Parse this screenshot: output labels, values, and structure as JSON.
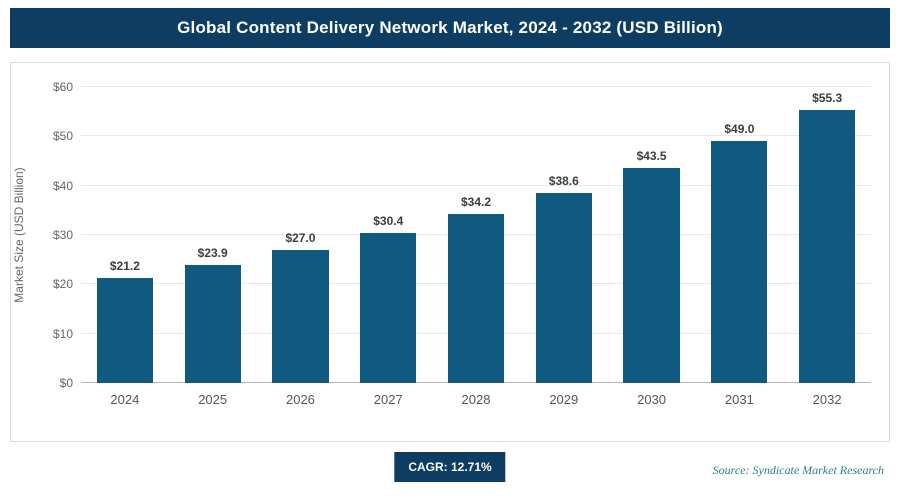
{
  "header": {
    "title": "Global Content Delivery Network Market, 2024 - 2032 (USD Billion)"
  },
  "chart_data": {
    "type": "bar",
    "title": "Global Content Delivery Network Market, 2024 - 2032 (USD Billion)",
    "categories": [
      "2024",
      "2025",
      "2026",
      "2027",
      "2028",
      "2029",
      "2030",
      "2031",
      "2032"
    ],
    "values": [
      21.2,
      23.9,
      27.0,
      30.4,
      34.2,
      38.6,
      43.5,
      49.0,
      55.3
    ],
    "value_labels": [
      "$21.2",
      "$23.9",
      "$27.0",
      "$30.4",
      "$34.2",
      "$38.6",
      "$43.5",
      "$49.0",
      "$55.3"
    ],
    "xlabel": "",
    "ylabel": "Market Size (USD Billion)",
    "ylim": [
      0,
      60
    ],
    "ytick_labels": [
      "$0",
      "$10",
      "$20",
      "$30",
      "$40",
      "$50",
      "$60"
    ],
    "grid": true,
    "legend": "none",
    "bar_color": "#0f5a7e"
  },
  "footer": {
    "cagr_label": "CAGR: 12.71%",
    "source": "Source: Syndicate Market Research"
  },
  "colors": {
    "header_bg": "#0d3d62",
    "badge_bg": "#0d3d62",
    "bar": "#0f5a7e",
    "source_text": "#2a7d8c"
  }
}
